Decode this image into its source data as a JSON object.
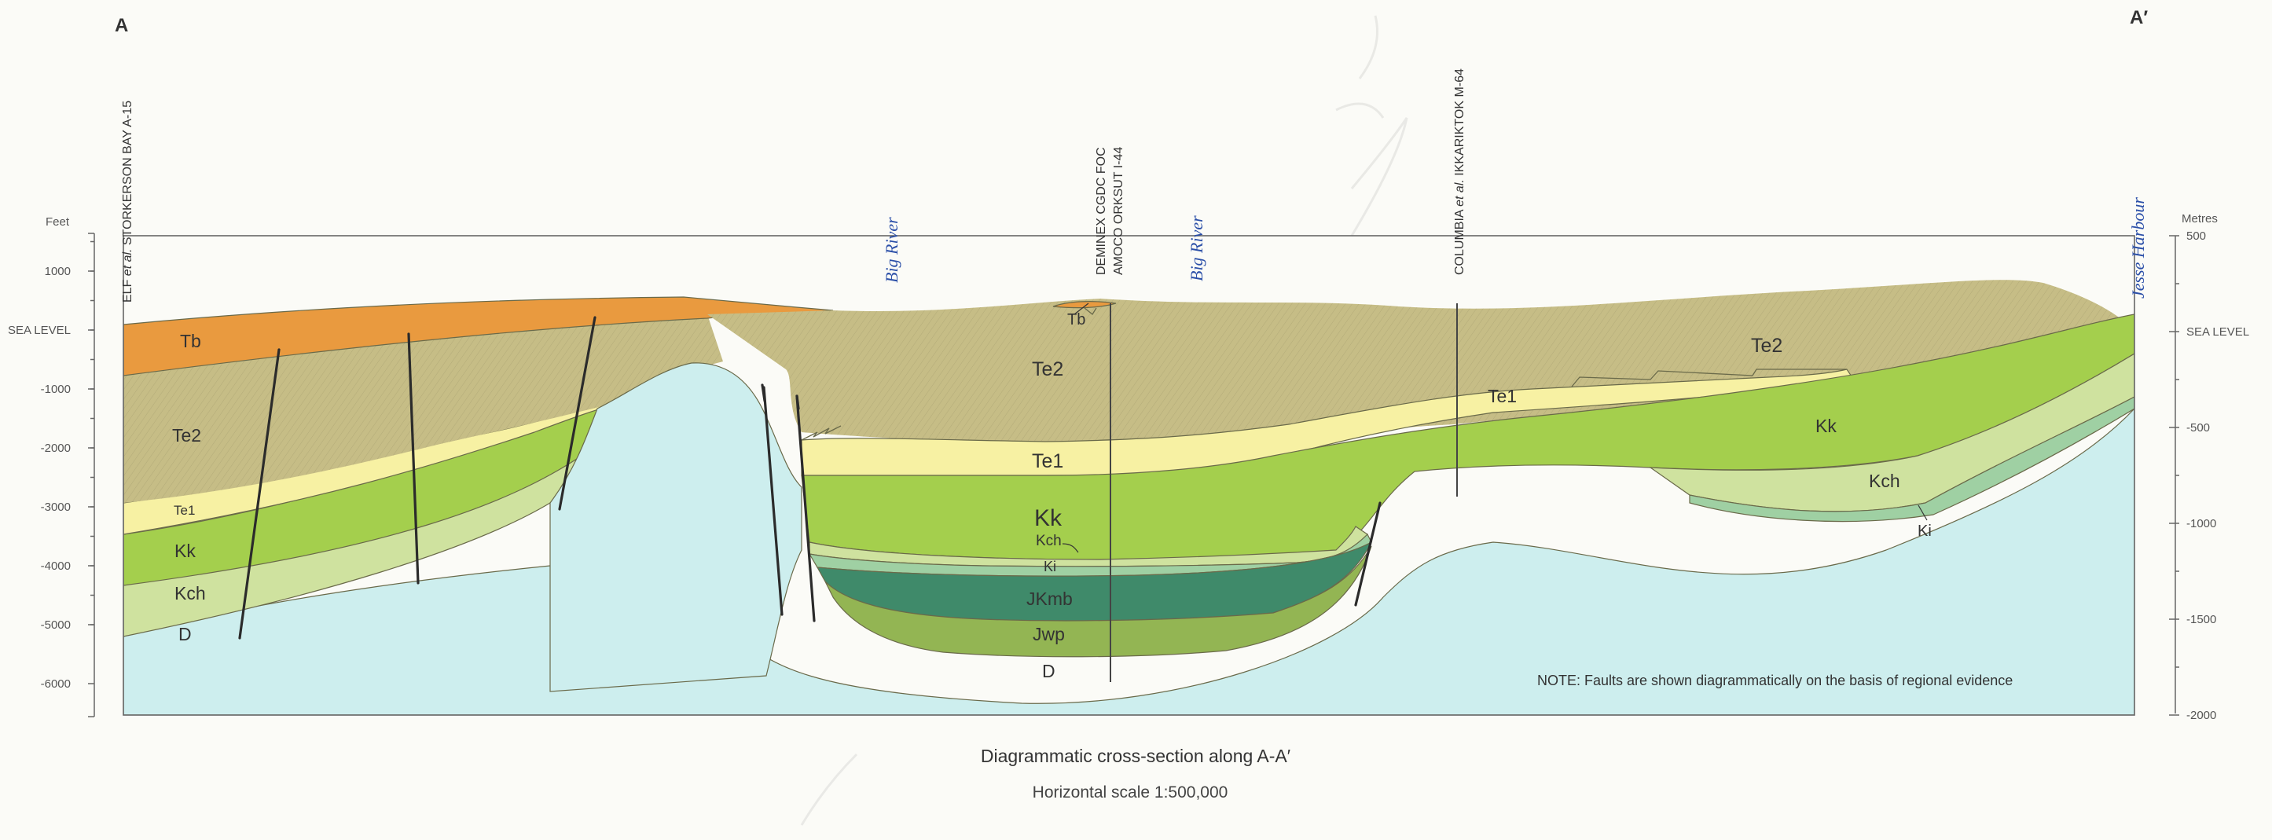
{
  "corners": {
    "left": "A",
    "right": "A′"
  },
  "left_axis": {
    "unit": "Feet",
    "ticks": [
      "1000",
      "SEA LEVEL",
      "-1000",
      "-2000",
      "-3000",
      "-4000",
      "-5000",
      "-6000"
    ]
  },
  "right_axis": {
    "unit": "Metres",
    "ticks": [
      "500",
      "SEA LEVEL",
      "-500",
      "-1000",
      "-1500",
      "-2000"
    ]
  },
  "wells": [
    {
      "operator": "ELF",
      "etal": "et al.",
      "name": "STORKERSON BAY A-15"
    },
    {
      "line1": "DEMINEX CGDC FOC",
      "line2": "AMOCO ORKSUT I-44"
    },
    {
      "operator": "COLUMBIA",
      "etal": "et al.",
      "name": "IKKARIKTOK M-64"
    }
  ],
  "rivers": [
    "Big River",
    "Big River",
    "Jesse Harbour"
  ],
  "units": {
    "tb_west": "Tb",
    "tb_center": "Tb",
    "te2_west": "Te2",
    "te2_center": "Te2",
    "te2_east": "Te2",
    "te1_west": "Te1",
    "te1_center": "Te1",
    "te1_east": "Te1",
    "kk_west": "Kk",
    "kk_center": "Kk",
    "kk_east": "Kk",
    "kch_west": "Kch",
    "kch_center": "Kch",
    "kch_east": "Kch",
    "ki_center": "Ki",
    "ki_east": "Ki",
    "jkmb": "JKmb",
    "jwp": "Jwp",
    "d_west": "D",
    "d_center": "D"
  },
  "colors": {
    "Tb": "#e99a3f",
    "Te2": "#c6bd86",
    "Te1": "#f7f1a3",
    "Kk": "#a4cf4d",
    "Kch": "#cfe29f",
    "Ki": "#9fd0a3",
    "JKmb": "#3f8a6a",
    "Jwp": "#93b553",
    "D": "#cdeeee"
  },
  "note": "NOTE: Faults are shown diagrammatically on the basis of regional evidence",
  "title": "Diagrammatic cross-section along A-A′",
  "scale": "Horizontal scale 1:500,000"
}
